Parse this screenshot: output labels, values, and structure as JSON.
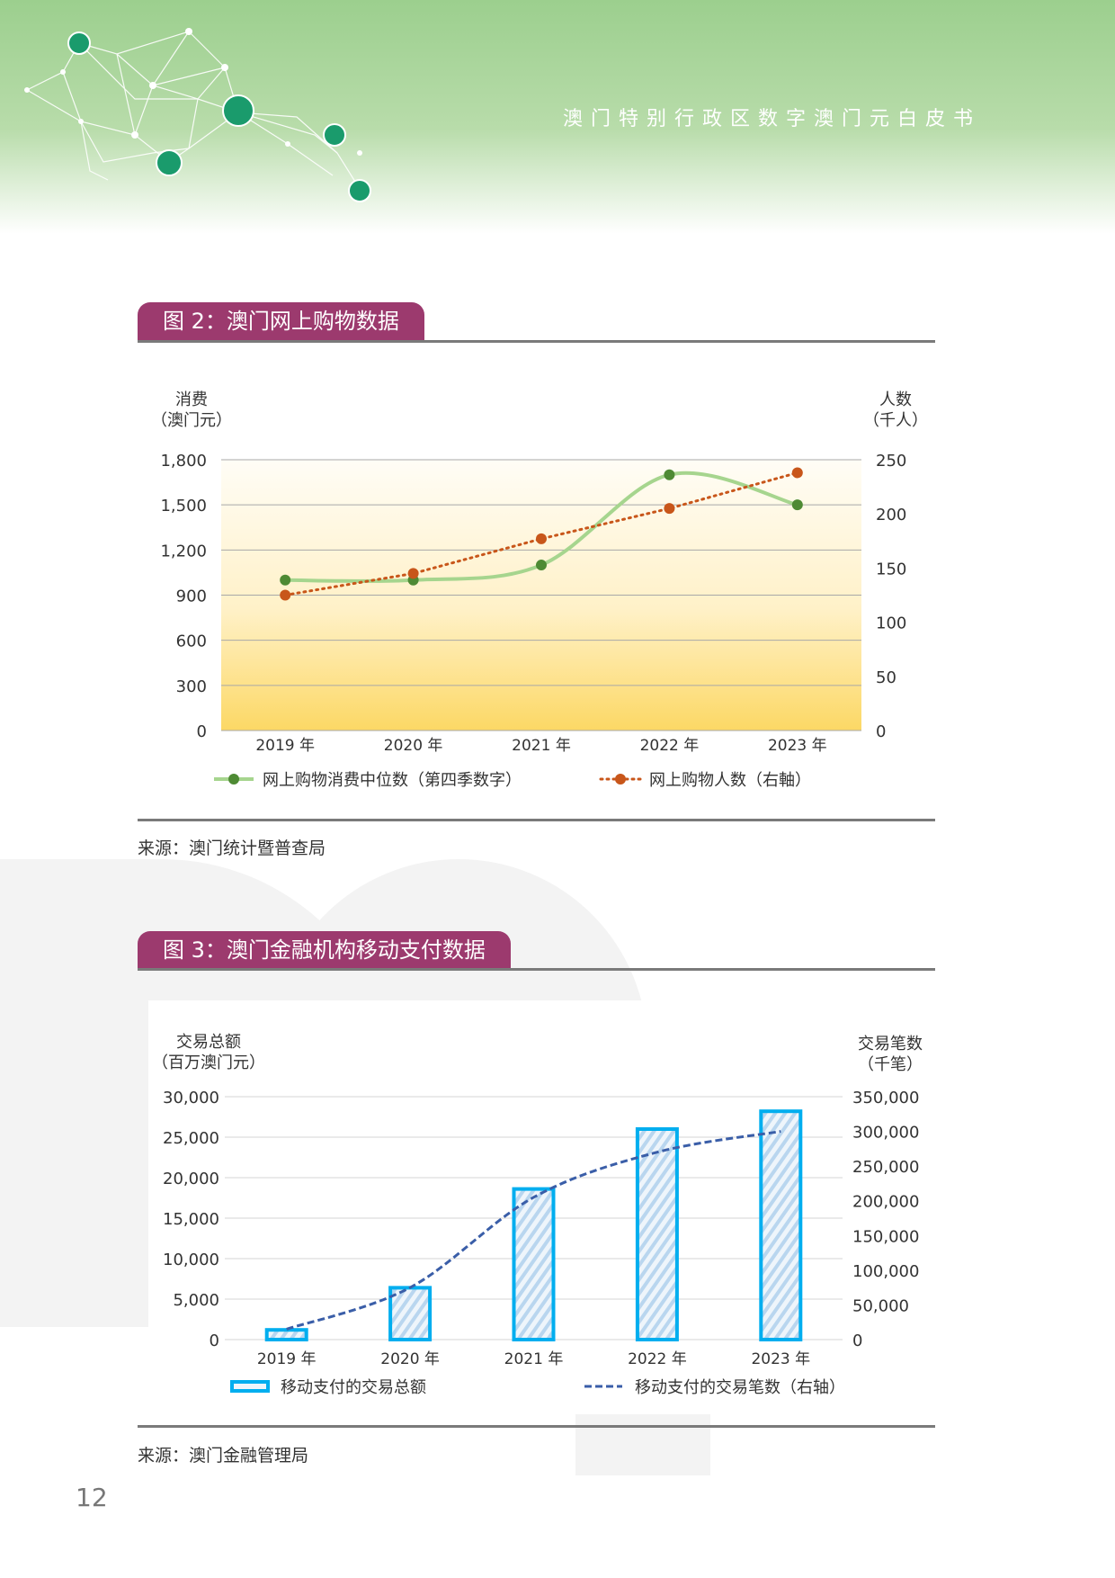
{
  "header": {
    "title": "澳门特别行政区数字澳门元白皮书"
  },
  "figure2": {
    "title": "图 2：澳门网上购物数据",
    "source": "来源：澳门统计暨普查局"
  },
  "figure3": {
    "title": "图 3：澳门金融机构移动支付数据",
    "source": "来源：澳门金融管理局"
  },
  "page_number": "12",
  "chart_data": [
    {
      "type": "line",
      "categories": [
        "2019 年",
        "2020 年",
        "2021 年",
        "2022 年",
        "2023 年"
      ],
      "ylabel": [
        "消费",
        "（澳门元）"
      ],
      "ylabel_right": [
        "人数",
        "（千人）"
      ],
      "ylim": [
        0,
        1800
      ],
      "yticks": [
        "0",
        "300",
        "600",
        "900",
        "1,200",
        "1,500",
        "1,800"
      ],
      "ylim_right": [
        0,
        250
      ],
      "yticks_right": [
        "0",
        "50",
        "100",
        "150",
        "200",
        "250"
      ],
      "grid": true,
      "legend": "bottom",
      "series": [
        {
          "name": "网上购物消费中位数（第四季数字）",
          "axis": "left",
          "values": [
            1000,
            1000,
            1100,
            1700,
            1500
          ],
          "color": "#a6d58e",
          "marker_color": "#4e8a34",
          "style": "smooth-solid"
        },
        {
          "name": "网上购物人数（右軸）",
          "axis": "right",
          "values": [
            125,
            145,
            177,
            205,
            238
          ],
          "color": "#c8561a",
          "marker_color": "#c8561a",
          "style": "dotted"
        }
      ]
    },
    {
      "type": "bar",
      "categories": [
        "2019 年",
        "2020 年",
        "2021 年",
        "2022 年",
        "2023 年"
      ],
      "ylabel": [
        "交易总额",
        "（百万澳门元）"
      ],
      "ylabel_right": [
        "交易笔数",
        "（千笔）"
      ],
      "ylim": [
        0,
        30000
      ],
      "yticks": [
        "0",
        "5,000",
        "10,000",
        "15,000",
        "20,000",
        "25,000",
        "30,000"
      ],
      "ylim_right": [
        0,
        350000
      ],
      "yticks_right": [
        "0",
        "50,000",
        "100,000",
        "150,000",
        "200,000",
        "250,000",
        "300,000",
        "350,000"
      ],
      "grid": true,
      "legend": "bottom",
      "series": [
        {
          "name": "移动支付的交易总额",
          "axis": "left",
          "type": "bar",
          "values": [
            1200,
            6400,
            18600,
            26000,
            28200
          ],
          "color": "#00aeef"
        },
        {
          "name": "移动支付的交易笔数（右轴）",
          "axis": "right",
          "type": "line",
          "values": [
            15000,
            75000,
            205000,
            270000,
            300000
          ],
          "color": "#3a5ea8",
          "style": "dashed"
        }
      ]
    }
  ]
}
